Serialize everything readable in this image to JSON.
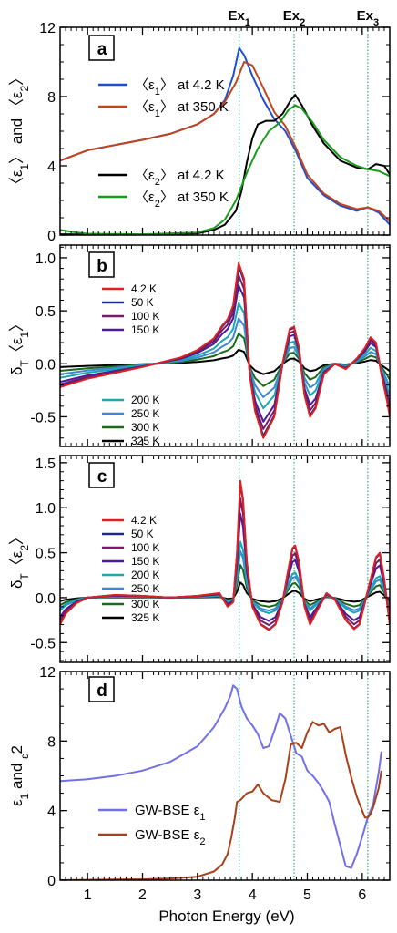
{
  "figure": {
    "xlabel": "Photon Energy (eV)",
    "x_ticks": [
      "1",
      "2",
      "3",
      "4",
      "5",
      "6"
    ],
    "xlim": [
      0.5,
      6.5
    ],
    "excitons": [
      {
        "label": "Ex",
        "sub": "1",
        "energy": 3.76
      },
      {
        "label": "Ex",
        "sub": "2",
        "energy": 4.76
      },
      {
        "label": "Ex",
        "sub": "3",
        "energy": 6.1
      }
    ]
  },
  "chart_data": [
    {
      "panel": "a",
      "type": "line",
      "ylabel_parts": [
        "〈ε",
        "1",
        "〉 and 〈ε",
        "2",
        "〉"
      ],
      "ylim": [
        0,
        12
      ],
      "y_ticks": [
        "0",
        "4",
        "8",
        "12"
      ],
      "legend": [
        {
          "pre": "〈ε",
          "sub": "1",
          "post": "〉 at 4.2 K",
          "color": "#1f4fd0"
        },
        {
          "pre": "〈ε",
          "sub": "1",
          "post": "〉 at 350 K",
          "color": "#c0451c"
        },
        {
          "pre": "〈ε",
          "sub": "2",
          "post": "〉 at 4.2 K",
          "color": "#000000"
        },
        {
          "pre": "〈ε",
          "sub": "2",
          "post": "〉 at 350 K",
          "color": "#1a9a1a"
        }
      ],
      "series": [
        {
          "name": "〈ε1〉 at 4.2 K",
          "color": "#1f4fd0",
          "x": [
            0.5,
            1.0,
            1.5,
            2.0,
            2.5,
            3.0,
            3.3,
            3.5,
            3.65,
            3.76,
            3.85,
            4.0,
            4.2,
            4.4,
            4.6,
            4.8,
            5.0,
            5.3,
            5.6,
            5.9,
            6.1,
            6.3,
            6.5
          ],
          "y": [
            4.3,
            4.9,
            5.2,
            5.5,
            5.85,
            6.4,
            7.0,
            7.8,
            9.2,
            10.8,
            10.4,
            9.2,
            7.8,
            6.7,
            6.0,
            4.8,
            3.3,
            2.3,
            1.7,
            1.4,
            1.6,
            1.3,
            0.6
          ]
        },
        {
          "name": "〈ε1〉 at 350 K",
          "color": "#c0451c",
          "x": [
            0.5,
            1.0,
            1.5,
            2.0,
            2.5,
            3.0,
            3.3,
            3.5,
            3.7,
            3.85,
            4.0,
            4.2,
            4.4,
            4.6,
            4.8,
            5.0,
            5.3,
            5.6,
            5.9,
            6.1,
            6.3,
            6.5
          ],
          "y": [
            4.3,
            4.9,
            5.2,
            5.5,
            5.85,
            6.4,
            7.0,
            7.7,
            8.8,
            10.0,
            9.8,
            8.5,
            7.1,
            6.3,
            5.0,
            3.5,
            2.4,
            1.8,
            1.5,
            1.6,
            1.4,
            0.8
          ]
        },
        {
          "name": "〈ε2〉 at 4.2 K",
          "color": "#000000",
          "x": [
            0.5,
            1.0,
            2.0,
            3.0,
            3.3,
            3.5,
            3.7,
            3.8,
            3.9,
            4.0,
            4.1,
            4.25,
            4.4,
            4.55,
            4.7,
            4.78,
            4.9,
            5.1,
            5.3,
            5.6,
            5.9,
            6.1,
            6.25,
            6.4,
            6.5
          ],
          "y": [
            0.05,
            0.03,
            0.03,
            0.1,
            0.3,
            0.6,
            1.4,
            2.5,
            4.2,
            5.6,
            6.4,
            6.6,
            6.6,
            7.0,
            7.8,
            8.1,
            7.5,
            6.3,
            5.3,
            4.3,
            3.9,
            3.8,
            4.1,
            4.0,
            3.5
          ]
        },
        {
          "name": "〈ε2〉 at 350 K",
          "color": "#1a9a1a",
          "x": [
            0.5,
            0.8,
            1.0,
            2.0,
            3.0,
            3.3,
            3.5,
            3.7,
            3.9,
            4.1,
            4.3,
            4.5,
            4.65,
            4.78,
            4.9,
            5.1,
            5.3,
            5.6,
            5.9,
            6.1,
            6.3,
            6.5
          ],
          "y": [
            0.3,
            0.15,
            0.08,
            0.05,
            0.15,
            0.4,
            0.9,
            2.0,
            3.6,
            5.0,
            6.0,
            6.5,
            7.2,
            7.5,
            7.3,
            6.5,
            5.5,
            4.5,
            4.0,
            3.8,
            3.7,
            3.4
          ]
        }
      ]
    },
    {
      "panel": "b",
      "type": "line",
      "ylabel_parts": [
        "δ",
        "T",
        "〈ε",
        "1",
        "〉"
      ],
      "ylim": [
        -0.78,
        1.12
      ],
      "y_ticks": [
        "-0.5",
        "0.0",
        "0.5",
        "1.0"
      ],
      "y_tick_values": [
        -0.5,
        0.0,
        0.5,
        1.0
      ],
      "legend_groups": [
        [
          {
            "name": "4.2 K",
            "color": "#e02020"
          },
          {
            "name": "50 K",
            "color": "#1a2a8a"
          },
          {
            "name": "100 K",
            "color": "#7a1a6a"
          },
          {
            "name": "150 K",
            "color": "#4a1a9a"
          }
        ],
        [
          {
            "name": "200 K",
            "color": "#18a8b0"
          },
          {
            "name": "250 K",
            "color": "#3f86d6"
          },
          {
            "name": "300 K",
            "color": "#1a6a1a"
          },
          {
            "name": "325 K",
            "color": "#000000"
          }
        ]
      ],
      "x": [
        0.5,
        1.0,
        2.0,
        2.7,
        3.0,
        3.3,
        3.45,
        3.55,
        3.65,
        3.75,
        3.85,
        3.95,
        4.05,
        4.2,
        4.4,
        4.55,
        4.68,
        4.76,
        4.85,
        4.95,
        5.05,
        5.15,
        5.3,
        5.5,
        5.7,
        5.9,
        6.05,
        6.15,
        6.25,
        6.35,
        6.45,
        6.5
      ],
      "shape": [
        -0.22,
        -0.14,
        -0.03,
        0.06,
        0.13,
        0.24,
        0.36,
        0.42,
        0.55,
        0.95,
        0.8,
        -0.1,
        -0.45,
        -0.7,
        -0.5,
        0.0,
        0.33,
        0.35,
        0.15,
        -0.3,
        -0.5,
        -0.42,
        -0.1,
        0.0,
        -0.05,
        0.05,
        0.15,
        0.25,
        0.2,
        -0.1,
        -0.35,
        -0.5
      ],
      "series": [
        {
          "name": "4.2 K",
          "color": "#e02020",
          "scale": 1.0
        },
        {
          "name": "50 K",
          "color": "#1a2a8a",
          "scale": 0.97
        },
        {
          "name": "100 K",
          "color": "#7a1a6a",
          "scale": 0.88
        },
        {
          "name": "150 K",
          "color": "#4a1a9a",
          "scale": 0.78
        },
        {
          "name": "200 K",
          "color": "#18a8b0",
          "scale": 0.6
        },
        {
          "name": "250 K",
          "color": "#3f86d6",
          "scale": 0.45
        },
        {
          "name": "300 K",
          "color": "#1a6a1a",
          "scale": 0.3
        },
        {
          "name": "325 K",
          "color": "#000000",
          "scale": 0.14
        }
      ]
    },
    {
      "panel": "c",
      "type": "line",
      "ylabel_parts": [
        "δ",
        "T",
        "〈ε",
        "2",
        "〉"
      ],
      "ylim": [
        -0.72,
        1.58
      ],
      "y_ticks": [
        "-0.5",
        "0.0",
        "0.5",
        "1.0",
        "1.5"
      ],
      "y_tick_values": [
        -0.5,
        0.0,
        0.5,
        1.0,
        1.5
      ],
      "legend_groups": [
        [
          {
            "name": "4.2 K",
            "color": "#e02020"
          },
          {
            "name": "50 K",
            "color": "#1a2a8a"
          },
          {
            "name": "100 K",
            "color": "#7a1a6a"
          },
          {
            "name": "150 K",
            "color": "#4a1a9a"
          },
          {
            "name": "200 K",
            "color": "#18a8b0"
          },
          {
            "name": "250 K",
            "color": "#3f86d6"
          }
        ],
        [
          {
            "name": "300 K",
            "color": "#1a6a1a"
          },
          {
            "name": "325 K",
            "color": "#000000"
          }
        ]
      ],
      "x": [
        0.5,
        0.6,
        0.8,
        1.0,
        1.5,
        2.0,
        2.5,
        3.0,
        3.4,
        3.55,
        3.65,
        3.72,
        3.78,
        3.83,
        3.9,
        4.0,
        4.15,
        4.3,
        4.42,
        4.55,
        4.65,
        4.73,
        4.78,
        4.85,
        4.95,
        5.05,
        5.2,
        5.35,
        5.5,
        5.7,
        5.85,
        5.95,
        6.05,
        6.15,
        6.25,
        6.32,
        6.4,
        6.5
      ],
      "shape": [
        -0.3,
        -0.18,
        -0.06,
        0.0,
        0.03,
        0.02,
        0.0,
        0.02,
        0.05,
        -0.1,
        -0.05,
        0.5,
        1.3,
        1.1,
        0.4,
        -0.1,
        -0.3,
        -0.36,
        -0.3,
        -0.05,
        0.3,
        0.55,
        0.58,
        0.4,
        -0.1,
        -0.3,
        -0.12,
        0.05,
        -0.02,
        -0.25,
        -0.35,
        -0.3,
        -0.05,
        0.2,
        0.45,
        0.5,
        0.2,
        -0.3
      ],
      "series": [
        {
          "name": "4.2 K",
          "color": "#e02020",
          "scale": 1.0
        },
        {
          "name": "50 K",
          "color": "#1a2a8a",
          "scale": 0.98
        },
        {
          "name": "100 K",
          "color": "#7a1a6a",
          "scale": 0.85
        },
        {
          "name": "150 K",
          "color": "#4a1a9a",
          "scale": 0.72
        },
        {
          "name": "200 K",
          "color": "#18a8b0",
          "scale": 0.48
        },
        {
          "name": "250 K",
          "color": "#3f86d6",
          "scale": 0.4
        },
        {
          "name": "300 K",
          "color": "#1a6a1a",
          "scale": 0.28
        },
        {
          "name": "325 K",
          "color": "#000000",
          "scale": 0.13
        }
      ]
    },
    {
      "panel": "d",
      "type": "line",
      "ylabel_parts": [
        "ε",
        "1",
        " and ",
        "ε",
        "2"
      ],
      "ylim": [
        0,
        12
      ],
      "y_ticks": [
        "0",
        "4",
        "8",
        "12"
      ],
      "legend": [
        {
          "pre": "GW-BSE  ε",
          "sub": "1",
          "color": "#7070e8"
        },
        {
          "pre": "GW-BSE  ε",
          "sub": "2",
          "color": "#a8401a"
        }
      ],
      "series": [
        {
          "name": "GW-BSE ε1",
          "color": "#7070e8",
          "x": [
            0.5,
            1.0,
            1.5,
            2.0,
            2.5,
            3.0,
            3.3,
            3.5,
            3.6,
            3.65,
            3.72,
            3.8,
            3.9,
            4.0,
            4.1,
            4.2,
            4.3,
            4.4,
            4.5,
            4.6,
            4.7,
            4.8,
            4.9,
            5.0,
            5.1,
            5.2,
            5.3,
            5.4,
            5.5,
            5.6,
            5.7,
            5.8,
            5.9,
            6.0,
            6.1,
            6.2,
            6.3,
            6.35
          ],
          "y": [
            5.7,
            5.8,
            6.0,
            6.3,
            6.8,
            7.7,
            8.8,
            9.9,
            10.6,
            11.2,
            11.0,
            10.0,
            9.3,
            8.9,
            8.4,
            7.6,
            7.7,
            8.6,
            9.6,
            9.3,
            8.3,
            7.3,
            7.1,
            6.3,
            6.0,
            5.6,
            5.1,
            4.5,
            3.2,
            2.0,
            0.8,
            0.7,
            1.5,
            2.5,
            3.6,
            4.4,
            6.2,
            7.4
          ]
        },
        {
          "name": "GW-BSE ε2",
          "color": "#a8401a",
          "x": [
            0.5,
            1.0,
            2.0,
            2.5,
            3.0,
            3.3,
            3.45,
            3.55,
            3.62,
            3.68,
            3.72,
            3.78,
            3.9,
            4.0,
            4.1,
            4.2,
            4.35,
            4.5,
            4.6,
            4.7,
            4.8,
            4.9,
            5.0,
            5.1,
            5.2,
            5.3,
            5.4,
            5.5,
            5.6,
            5.7,
            5.8,
            5.9,
            6.0,
            6.05,
            6.1,
            6.15,
            6.2,
            6.3,
            6.35
          ],
          "y": [
            0.0,
            0.02,
            0.05,
            0.1,
            0.2,
            0.5,
            0.9,
            1.5,
            2.5,
            3.6,
            4.5,
            4.6,
            5.0,
            5.1,
            5.5,
            5.0,
            4.6,
            4.5,
            5.8,
            7.8,
            7.9,
            7.6,
            8.5,
            9.1,
            8.9,
            9.0,
            8.5,
            8.7,
            8.8,
            7.2,
            5.9,
            4.8,
            4.0,
            3.6,
            3.6,
            3.8,
            4.2,
            5.3,
            6.3
          ]
        }
      ]
    }
  ]
}
